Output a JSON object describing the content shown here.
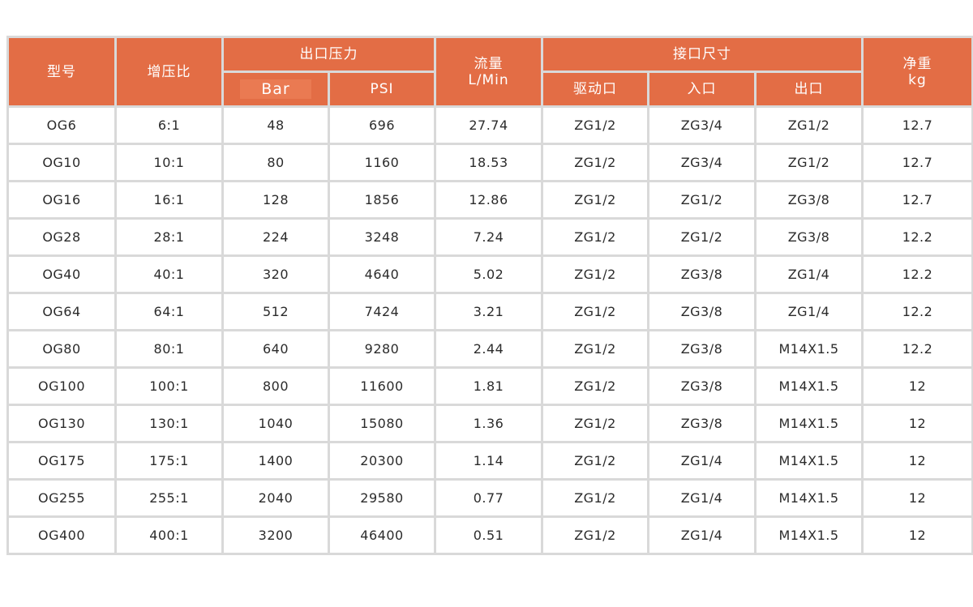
{
  "headers": {
    "model": "型号",
    "ratio": "增压比",
    "outlet_pressure": "出口压力",
    "bar": "Bar",
    "psi": "PSI",
    "flow_line1": "流量",
    "flow_line2": "L/Min",
    "port_size": "接口尺寸",
    "drive_port": "驱动口",
    "inlet": "入口",
    "outlet": "出口",
    "weight_line1": "净重",
    "weight_line2": "kg"
  },
  "rows": [
    [
      "OG6",
      "6:1",
      "48",
      "696",
      "27.74",
      "ZG1/2",
      "ZG3/4",
      "ZG1/2",
      "12.7"
    ],
    [
      "OG10",
      "10:1",
      "80",
      "1160",
      "18.53",
      "ZG1/2",
      "ZG3/4",
      "ZG1/2",
      "12.7"
    ],
    [
      "OG16",
      "16:1",
      "128",
      "1856",
      "12.86",
      "ZG1/2",
      "ZG1/2",
      "ZG3/8",
      "12.7"
    ],
    [
      "OG28",
      "28:1",
      "224",
      "3248",
      "7.24",
      "ZG1/2",
      "ZG1/2",
      "ZG3/8",
      "12.2"
    ],
    [
      "OG40",
      "40:1",
      "320",
      "4640",
      "5.02",
      "ZG1/2",
      "ZG3/8",
      "ZG1/4",
      "12.2"
    ],
    [
      "OG64",
      "64:1",
      "512",
      "7424",
      "3.21",
      "ZG1/2",
      "ZG3/8",
      "ZG1/4",
      "12.2"
    ],
    [
      "OG80",
      "80:1",
      "640",
      "9280",
      "2.44",
      "ZG1/2",
      "ZG3/8",
      "M14X1.5",
      "12.2"
    ],
    [
      "OG100",
      "100:1",
      "800",
      "11600",
      "1.81",
      "ZG1/2",
      "ZG3/8",
      "M14X1.5",
      "12"
    ],
    [
      "OG130",
      "130:1",
      "1040",
      "15080",
      "1.36",
      "ZG1/2",
      "ZG3/8",
      "M14X1.5",
      "12"
    ],
    [
      "OG175",
      "175:1",
      "1400",
      "20300",
      "1.14",
      "ZG1/2",
      "ZG1/4",
      "M14X1.5",
      "12"
    ],
    [
      "OG255",
      "255:1",
      "2040",
      "29580",
      "0.77",
      "ZG1/2",
      "ZG1/4",
      "M14X1.5",
      "12"
    ],
    [
      "OG400",
      "400:1",
      "3200",
      "46400",
      "0.51",
      "ZG1/2",
      "ZG1/4",
      "M14X1.5",
      "12"
    ]
  ]
}
